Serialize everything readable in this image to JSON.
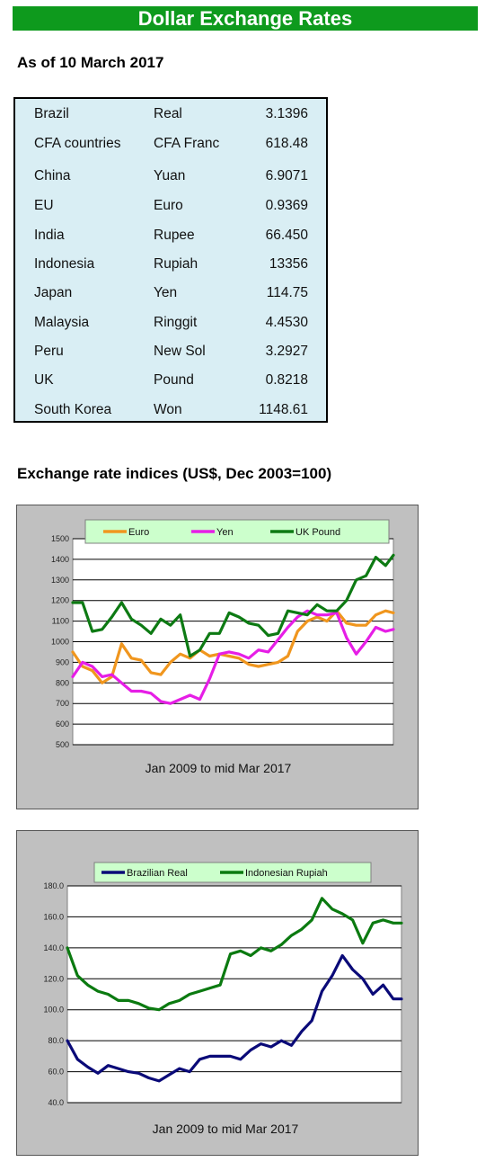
{
  "page": {
    "title": "Dollar Exchange Rates",
    "as_of": "As of 10 March 2017",
    "indices_heading": "Exchange rate indices (US$, Dec 2003=100)"
  },
  "rates": [
    {
      "country": "Brazil",
      "currency": "Real",
      "value": "3.1396"
    },
    {
      "country": "CFA countries",
      "currency": "CFA Franc",
      "value": "618.48"
    },
    {
      "country": "China",
      "currency": "Yuan",
      "value": "6.9071"
    },
    {
      "country": "EU",
      "currency": "Euro",
      "value": "0.9369"
    },
    {
      "country": "India",
      "currency": "Rupee",
      "value": "66.450"
    },
    {
      "country": "Indonesia",
      "currency": "Rupiah",
      "value": "13356"
    },
    {
      "country": "Japan",
      "currency": "Yen",
      "value": "114.75"
    },
    {
      "country": "Malaysia",
      "currency": "Ringgit",
      "value": "4.4530"
    },
    {
      "country": "Peru",
      "currency": "New Sol",
      "value": "3.2927"
    },
    {
      "country": "UK",
      "currency": "Pound",
      "value": "0.8218"
    },
    {
      "country": "South Korea",
      "currency": "Won",
      "value": "1148.61"
    }
  ],
  "chart_data": [
    {
      "type": "line",
      "xlabel": "Jan 2009 to mid Mar 2017",
      "ylim": [
        500,
        1500
      ],
      "yticks": [
        500,
        600,
        700,
        800,
        900,
        1000,
        1100,
        1200,
        1300,
        1400,
        1500
      ],
      "ytick_labels": [
        "500",
        "600",
        "700",
        "800",
        "900",
        "1000",
        "1100",
        "1200",
        "1300",
        "1400",
        "1500"
      ],
      "grid": true,
      "legend": "top",
      "x": [
        2009.0,
        2009.25,
        2009.5,
        2009.75,
        2010.0,
        2010.25,
        2010.5,
        2010.75,
        2011.0,
        2011.25,
        2011.5,
        2011.75,
        2012.0,
        2012.25,
        2012.5,
        2012.75,
        2013.0,
        2013.25,
        2013.5,
        2013.75,
        2014.0,
        2014.25,
        2014.5,
        2014.75,
        2015.0,
        2015.25,
        2015.5,
        2015.75,
        2016.0,
        2016.25,
        2016.5,
        2016.75,
        2017.0,
        2017.2
      ],
      "series": [
        {
          "name": "Euro",
          "color": "#f0961e",
          "values": [
            950,
            880,
            860,
            800,
            830,
            990,
            920,
            910,
            850,
            840,
            900,
            940,
            920,
            960,
            930,
            940,
            930,
            920,
            890,
            880,
            890,
            900,
            930,
            1050,
            1100,
            1120,
            1100,
            1150,
            1090,
            1080,
            1080,
            1130,
            1150,
            1140
          ]
        },
        {
          "name": "Yen",
          "color": "#e61ee6",
          "values": [
            830,
            900,
            880,
            830,
            840,
            800,
            760,
            760,
            750,
            710,
            700,
            720,
            740,
            720,
            820,
            940,
            950,
            940,
            920,
            960,
            950,
            1010,
            1070,
            1120,
            1150,
            1130,
            1130,
            1140,
            1020,
            940,
            1000,
            1070,
            1050,
            1060
          ]
        },
        {
          "name": "UK Pound",
          "color": "#0d7a13",
          "values": [
            1190,
            1190,
            1050,
            1060,
            1120,
            1190,
            1110,
            1080,
            1040,
            1110,
            1080,
            1130,
            930,
            960,
            1040,
            1040,
            1140,
            1120,
            1090,
            1080,
            1030,
            1040,
            1150,
            1140,
            1130,
            1180,
            1150,
            1150,
            1200,
            1300,
            1320,
            1410,
            1370,
            1420
          ]
        }
      ]
    },
    {
      "type": "line",
      "xlabel": "Jan 2009 to mid Mar 2017",
      "ylim": [
        40,
        180
      ],
      "yticks": [
        40,
        60,
        80,
        100,
        120,
        140,
        160,
        180
      ],
      "ytick_labels": [
        "40.0",
        "60.0",
        "80.0",
        "100.0",
        "120.0",
        "140.0",
        "160.0",
        "180.0"
      ],
      "grid": true,
      "legend": "top",
      "x": [
        2009.0,
        2009.25,
        2009.5,
        2009.75,
        2010.0,
        2010.25,
        2010.5,
        2010.75,
        2011.0,
        2011.25,
        2011.5,
        2011.75,
        2012.0,
        2012.25,
        2012.5,
        2012.75,
        2013.0,
        2013.25,
        2013.5,
        2013.75,
        2014.0,
        2014.25,
        2014.5,
        2014.75,
        2015.0,
        2015.25,
        2015.5,
        2015.75,
        2016.0,
        2016.25,
        2016.5,
        2016.75,
        2017.0,
        2017.2
      ],
      "series": [
        {
          "name": "Brazilian Real",
          "color": "#0a0a78",
          "values": [
            80,
            68,
            63,
            59,
            64,
            62,
            60,
            59,
            56,
            54,
            58,
            62,
            60,
            68,
            70,
            70,
            70,
            68,
            74,
            78,
            76,
            80,
            77,
            86,
            93,
            112,
            122,
            135,
            126,
            120,
            110,
            116,
            107,
            107
          ]
        },
        {
          "name": "Indonesian Rupiah",
          "color": "#0b7a10",
          "values": [
            140,
            122,
            116,
            112,
            110,
            106,
            106,
            104,
            101,
            100,
            104,
            106,
            110,
            112,
            114,
            116,
            136,
            138,
            135,
            140,
            138,
            142,
            148,
            152,
            158,
            172,
            165,
            162,
            158,
            143,
            156,
            158,
            156,
            156
          ]
        }
      ]
    }
  ]
}
